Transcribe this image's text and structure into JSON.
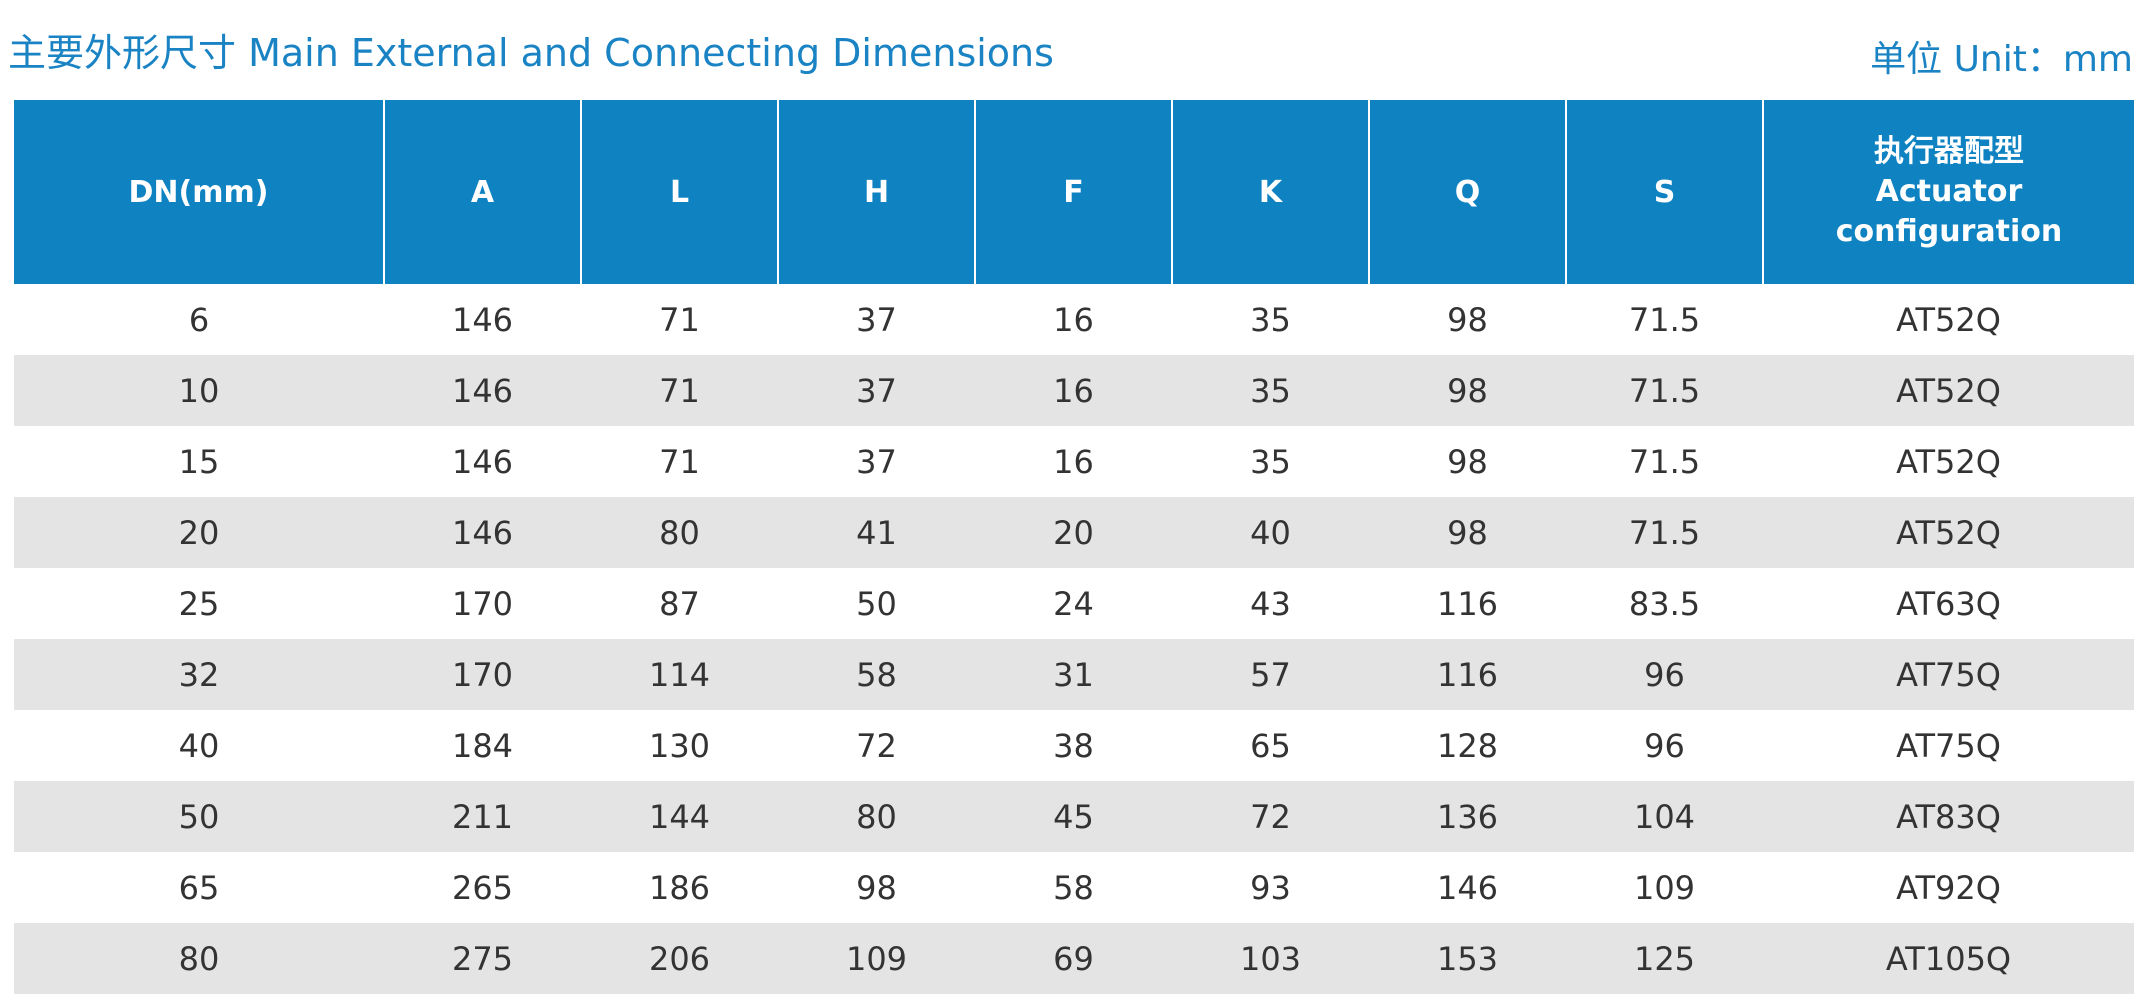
{
  "header": {
    "title": "主要外形尺寸 Main External and Connecting Dimensions",
    "unit": "单位 Unit：mm"
  },
  "table": {
    "columns": [
      {
        "label": "DN(mm)"
      },
      {
        "label": "A"
      },
      {
        "label": "L"
      },
      {
        "label": "H"
      },
      {
        "label": "F"
      },
      {
        "label": "K"
      },
      {
        "label": "Q"
      },
      {
        "label": "S"
      },
      {
        "label_cn": "执行器配型",
        "label_en1": "Actuator",
        "label_en2": "configuration"
      }
    ],
    "rows": [
      [
        "6",
        "146",
        "71",
        "37",
        "16",
        "35",
        "98",
        "71.5",
        "AT52Q"
      ],
      [
        "10",
        "146",
        "71",
        "37",
        "16",
        "35",
        "98",
        "71.5",
        "AT52Q"
      ],
      [
        "15",
        "146",
        "71",
        "37",
        "16",
        "35",
        "98",
        "71.5",
        "AT52Q"
      ],
      [
        "20",
        "146",
        "80",
        "41",
        "20",
        "40",
        "98",
        "71.5",
        "AT52Q"
      ],
      [
        "25",
        "170",
        "87",
        "50",
        "24",
        "43",
        "116",
        "83.5",
        "AT63Q"
      ],
      [
        "32",
        "170",
        "114",
        "58",
        "31",
        "57",
        "116",
        "96",
        "AT75Q"
      ],
      [
        "40",
        "184",
        "130",
        "72",
        "38",
        "65",
        "128",
        "96",
        "AT75Q"
      ],
      [
        "50",
        "211",
        "144",
        "80",
        "45",
        "72",
        "136",
        "104",
        "AT83Q"
      ],
      [
        "65",
        "265",
        "186",
        "98",
        "58",
        "93",
        "146",
        "109",
        "AT92Q"
      ],
      [
        "80",
        "275",
        "206",
        "109",
        "69",
        "103",
        "153",
        "125",
        "AT105Q"
      ]
    ]
  },
  "colors": {
    "accent": "#1a83c4",
    "header_bg": "#0f82c1",
    "row_alt": "#e4e4e4"
  }
}
